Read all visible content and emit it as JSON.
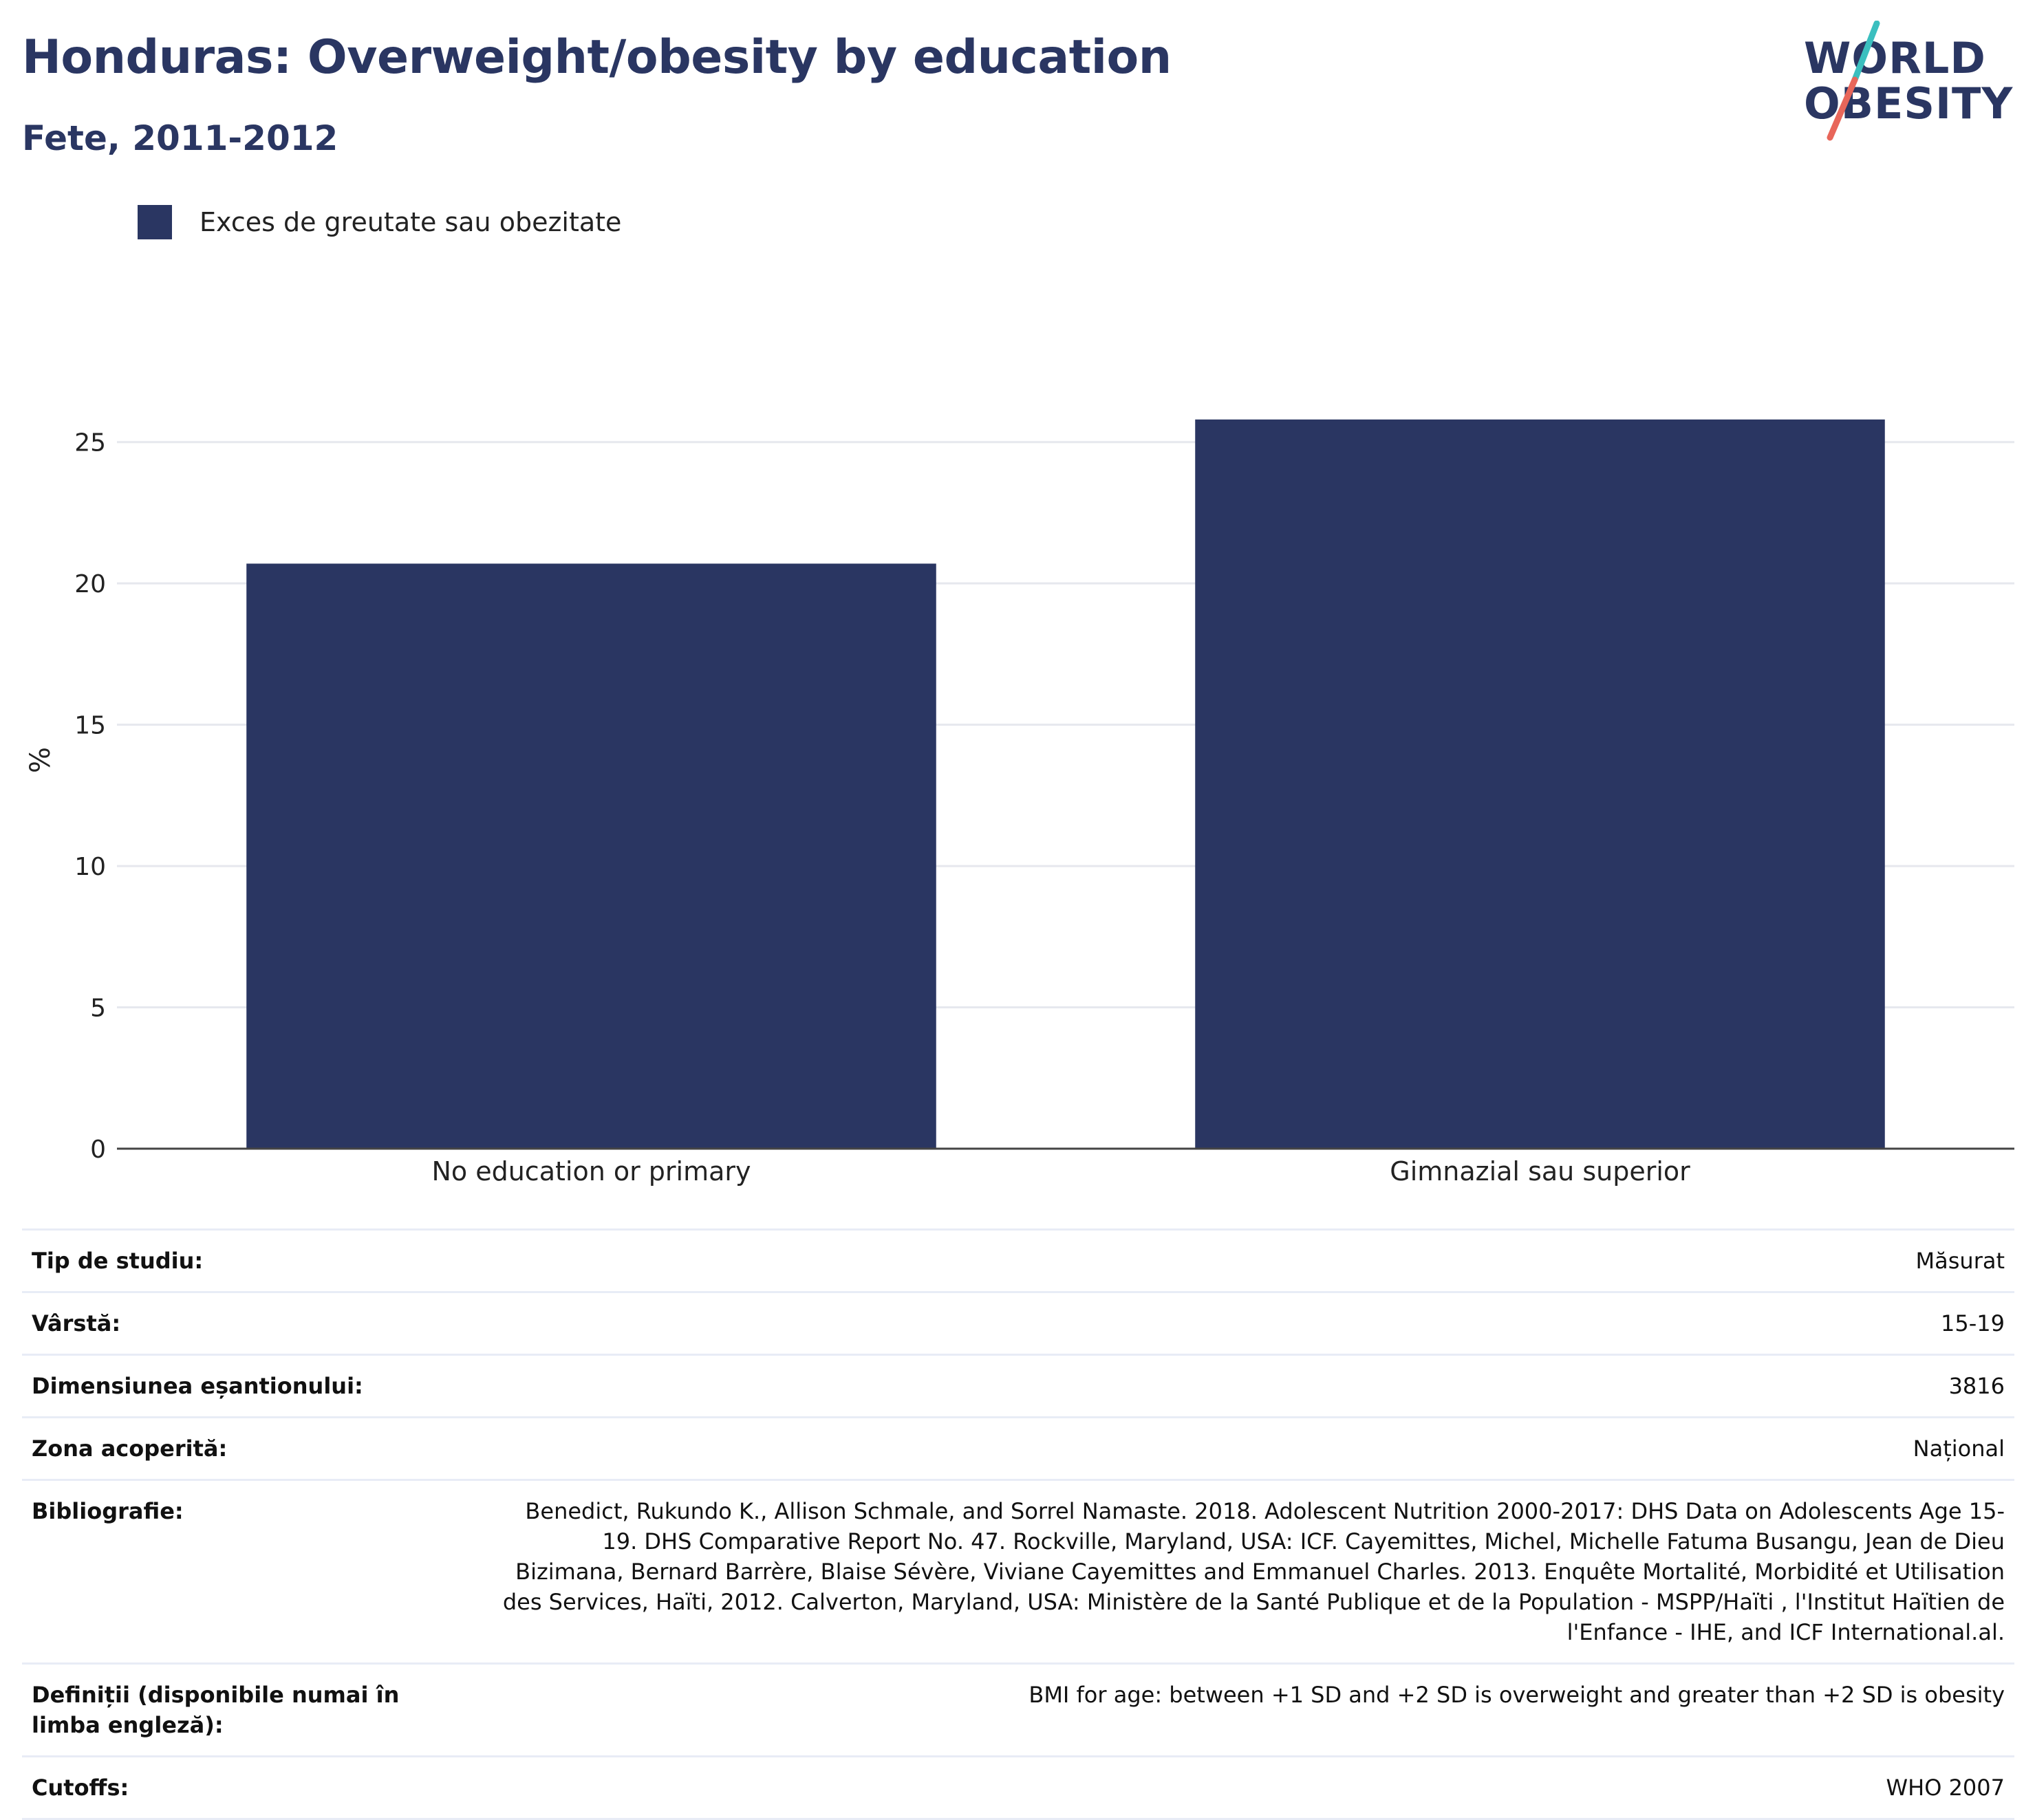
{
  "header": {
    "title": "Honduras: Overweight/obesity by education",
    "subtitle": "Fete, 2011-2012"
  },
  "logo": {
    "line1": "WORLD",
    "line2": "OBESITY",
    "colors": {
      "text": "#2a3662",
      "slash_top": "#3bbfbf",
      "slash_bottom": "#e8665a"
    }
  },
  "legend": {
    "label": "Exces de greutate sau obezitate",
    "color": "#2a3662"
  },
  "chart_data": {
    "type": "bar",
    "categories": [
      "No education or primary",
      "Gimnazial sau superior"
    ],
    "series": [
      {
        "name": "Exces de greutate sau obezitate",
        "values": [
          20.7,
          25.8
        ],
        "color": "#2a3662"
      }
    ],
    "ylabel": "%",
    "yticks": [
      0,
      5,
      10,
      15,
      20,
      25
    ],
    "ylim": [
      0,
      27.5
    ],
    "grid": true,
    "legend_position": "top-left"
  },
  "info": [
    {
      "key": "Tip de studiu:",
      "value": "Măsurat"
    },
    {
      "key": "Vârstă:",
      "value": "15-19"
    },
    {
      "key": "Dimensiunea eșantionului:",
      "value": "3816"
    },
    {
      "key": "Zona acoperită:",
      "value": "Național"
    },
    {
      "key": "Bibliografie:",
      "value": "Benedict, Rukundo K., Allison Schmale, and Sorrel Namaste. 2018. Adolescent Nutrition 2000-2017: DHS Data on Adolescents Age 15-19. DHS Comparative Report No. 47. Rockville, Maryland, USA: ICF. Cayemittes, Michel, Michelle Fatuma Busangu, Jean de Dieu Bizimana, Bernard Barrère, Blaise Sévère, Viviane Cayemittes and Emmanuel Charles. 2013. Enquête Mortalité, Morbidité et Utilisation des Services, Haïti, 2012. Calverton, Maryland, USA: Ministère de la Santé Publique et de la Population - MSPP/Haïti , l'Institut Haïtien de l'Enfance - IHE, and ICF International.al."
    },
    {
      "key": "Definiții (disponibile numai în limba engleză):",
      "value": "BMI for age: between +1 SD and +2 SD is overweight and greater than +2 SD is obesity"
    },
    {
      "key": "Cutoffs:",
      "value": "WHO 2007"
    }
  ]
}
